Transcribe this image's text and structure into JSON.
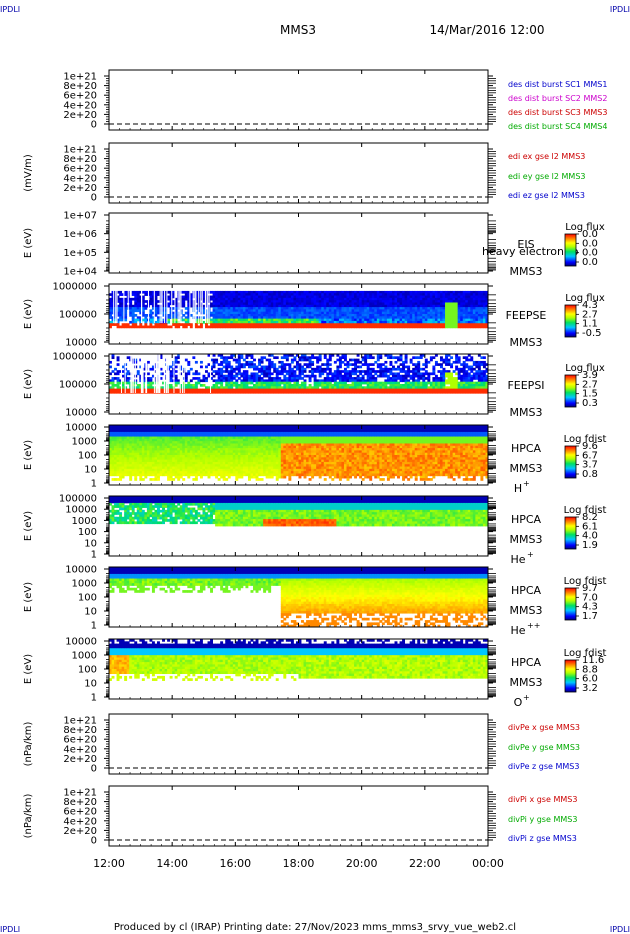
{
  "page": {
    "corner_logo": "IPDLI",
    "title": "MMS3",
    "date": "14/Mar/2016 12:00",
    "footer": "Produced by cl (IRAP)   Printing date: 27/Nov/2023   mms_mms3_srvy_vue_web2.cl"
  },
  "colors": {
    "red": "#cc0000",
    "green": "#00aa00",
    "blue": "#0000cc",
    "magenta": "#cc00cc"
  },
  "chart_data": [
    {
      "type": "line",
      "ylabel": "",
      "yticks": [
        "1e+21",
        "8e+20",
        "6e+20",
        "4e+20",
        "2e+20",
        "0"
      ],
      "ylim": [
        0,
        1e+21
      ],
      "legend": [
        {
          "label": "des dist burst SC1 MMS1",
          "color": "#0000cc"
        },
        {
          "label": "des dist burst SC2 MMS2",
          "color": "#cc00cc"
        },
        {
          "label": "des dist burst SC3 MMS3",
          "color": "#cc0000"
        },
        {
          "label": "des dist burst SC4 MMS4",
          "color": "#00aa00"
        }
      ]
    },
    {
      "type": "line",
      "ylabel": "(mV/m)",
      "yticks": [
        "1e+21",
        "8e+20",
        "6e+20",
        "4e+20",
        "2e+20",
        "0"
      ],
      "ylim": [
        0,
        1e+21
      ],
      "legend": [
        {
          "label": "edi ex gse l2 MMS3",
          "color": "#cc0000"
        },
        {
          "label": "edi ey gse l2 MMS3",
          "color": "#00aa00"
        },
        {
          "label": "edi ez gse l2 MMS3",
          "color": "#0000cc"
        }
      ]
    },
    {
      "type": "heatmap",
      "ylabel": "E (eV)",
      "yticks": [
        "1e+07",
        "1e+06",
        "1e+05",
        "1e+04"
      ],
      "log": true,
      "empty": true,
      "instrument": [
        "EIS",
        "MMS3"
      ],
      "overlay_text": "heavy electron to",
      "colorbar": {
        "title": "Log flux",
        "ticks": [
          "0.0",
          "0.0",
          "0.0",
          "0.0"
        ]
      }
    },
    {
      "type": "heatmap",
      "ylabel": "E (eV)",
      "yticks": [
        "1000000",
        "100000",
        "10000"
      ],
      "log": true,
      "instrument": [
        "FEEPSE",
        "MMS3"
      ],
      "colorbar": {
        "title": "Log flux",
        "ticks": [
          "4.3",
          "2.7",
          "1.1",
          "-0.5"
        ]
      }
    },
    {
      "type": "heatmap",
      "ylabel": "E (eV)",
      "yticks": [
        "1000000",
        "100000",
        "10000"
      ],
      "log": true,
      "instrument": [
        "FEEPSI",
        "MMS3"
      ],
      "colorbar": {
        "title": "Log flux",
        "ticks": [
          "3.9",
          "2.7",
          "1.5",
          "0.3"
        ]
      }
    },
    {
      "type": "heatmap",
      "ylabel": "E (eV)",
      "yticks": [
        "10000",
        "1000",
        "100",
        "10",
        "1"
      ],
      "log": true,
      "instrument": [
        "HPCA",
        "MMS3"
      ],
      "species": {
        "base": "H",
        "sup": "+"
      },
      "colorbar": {
        "title": "Log fdist",
        "ticks": [
          "9.6",
          "6.7",
          "3.7",
          "0.8"
        ]
      }
    },
    {
      "type": "heatmap",
      "ylabel": "E (eV)",
      "yticks": [
        "100000",
        "10000",
        "1000",
        "100",
        "10",
        "1"
      ],
      "log": true,
      "instrument": [
        "HPCA",
        "MMS3"
      ],
      "species": {
        "base": "He",
        "sup": "+"
      },
      "colorbar": {
        "title": "Log fdist",
        "ticks": [
          "8.2",
          "6.1",
          "4.0",
          "1.9"
        ]
      }
    },
    {
      "type": "heatmap",
      "ylabel": "E (eV)",
      "yticks": [
        "10000",
        "1000",
        "100",
        "10",
        "1"
      ],
      "log": true,
      "instrument": [
        "HPCA",
        "MMS3"
      ],
      "species": {
        "base": "He",
        "sup": "++"
      },
      "colorbar": {
        "title": "Log fdist",
        "ticks": [
          "9.7",
          "7.0",
          "4.3",
          "1.7"
        ]
      }
    },
    {
      "type": "heatmap",
      "ylabel": "E (eV)",
      "yticks": [
        "10000",
        "1000",
        "100",
        "10",
        "1"
      ],
      "log": true,
      "instrument": [
        "HPCA",
        "MMS3"
      ],
      "species": {
        "base": "O",
        "sup": "+"
      },
      "colorbar": {
        "title": "Log fdist",
        "ticks": [
          "11.6",
          "8.8",
          "6.0",
          "3.2"
        ]
      }
    },
    {
      "type": "line",
      "ylabel": "(nPa/km)",
      "yticks": [
        "1e+21",
        "8e+20",
        "6e+20",
        "4e+20",
        "2e+20",
        "0"
      ],
      "ylim": [
        0,
        1e+21
      ],
      "legend": [
        {
          "label": "divPe x gse MMS3",
          "color": "#cc0000"
        },
        {
          "label": "divPe y gse MMS3",
          "color": "#00aa00"
        },
        {
          "label": "divPe z gse MMS3",
          "color": "#0000cc"
        }
      ]
    },
    {
      "type": "line",
      "ylabel": "(nPa/km)",
      "yticks": [
        "1e+21",
        "8e+20",
        "6e+20",
        "4e+20",
        "2e+20",
        "0"
      ],
      "ylim": [
        0,
        1e+21
      ],
      "legend": [
        {
          "label": "divPi x gse MMS3",
          "color": "#cc0000"
        },
        {
          "label": "divPi y gse MMS3",
          "color": "#00aa00"
        },
        {
          "label": "divPi z gse MMS3",
          "color": "#0000cc"
        }
      ]
    }
  ],
  "xaxis": {
    "ticks": [
      "12:00",
      "14:00",
      "16:00",
      "18:00",
      "20:00",
      "22:00",
      "00:00"
    ],
    "range_hours": [
      12,
      24
    ]
  }
}
